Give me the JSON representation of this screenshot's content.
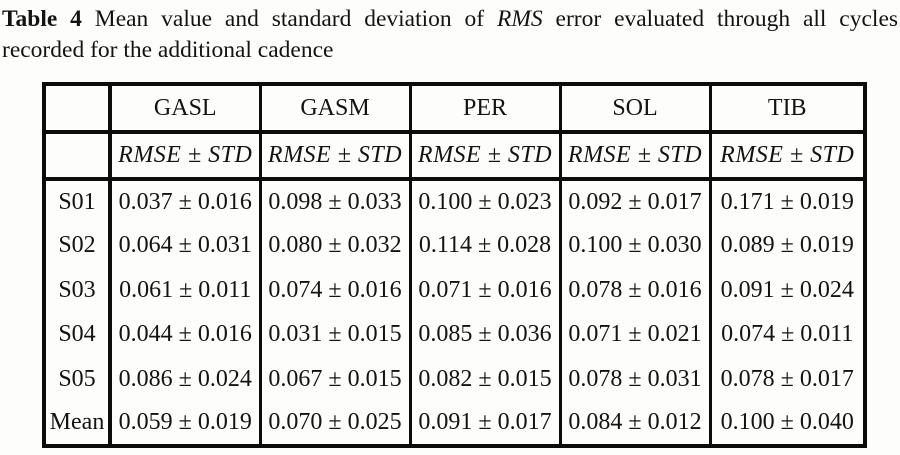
{
  "caption": {
    "label": "Table 4",
    "line1_pre": "Mean value and standard deviation of",
    "rms": "RMS",
    "line1_post": "error evaluated through all cycles",
    "line2": "recorded for the additional cadence"
  },
  "table": {
    "columns": [
      "GASL",
      "GASM",
      "PER",
      "SOL",
      "TIB"
    ],
    "subheader_label": "RMSE ± STD",
    "rows": [
      {
        "label": "S01",
        "values": [
          "0.037 ± 0.016",
          "0.098 ± 0.033",
          "0.100 ± 0.023",
          "0.092 ± 0.017",
          "0.171 ± 0.019"
        ]
      },
      {
        "label": "S02",
        "values": [
          "0.064 ± 0.031",
          "0.080 ± 0.032",
          "0.114 ± 0.028",
          "0.100 ± 0.030",
          "0.089 ± 0.019"
        ]
      },
      {
        "label": "S03",
        "values": [
          "0.061 ± 0.011",
          "0.074 ± 0.016",
          "0.071 ± 0.016",
          "0.078 ± 0.016",
          "0.091 ± 0.024"
        ]
      },
      {
        "label": "S04",
        "values": [
          "0.044 ± 0.016",
          "0.031 ± 0.015",
          "0.085 ± 0.036",
          "0.071 ± 0.021",
          "0.074 ± 0.011"
        ]
      },
      {
        "label": "S05",
        "values": [
          "0.086 ± 0.024",
          "0.067 ± 0.015",
          "0.082 ± 0.015",
          "0.078 ± 0.031",
          "0.078 ± 0.017"
        ]
      },
      {
        "label": "Mean",
        "values": [
          "0.059 ± 0.019",
          "0.070 ± 0.025",
          "0.091 ± 0.017",
          "0.084 ± 0.012",
          "0.100 ± 0.040"
        ]
      }
    ]
  }
}
